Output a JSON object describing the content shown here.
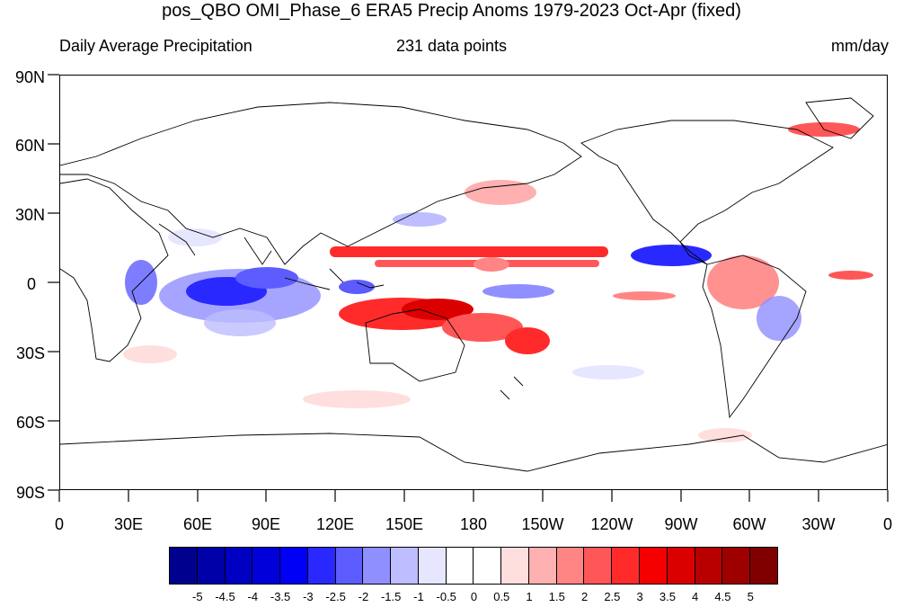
{
  "title": "pos_QBO OMI_Phase_6 ERA5 Precip Anoms 1979-2023 Oct-Apr (fixed)",
  "subtitle_left": "Daily Average Precipitation",
  "subtitle_center": "231 data points",
  "subtitle_right": "mm/day",
  "y_labels": [
    "90N",
    "60N",
    "30N",
    "0",
    "30S",
    "60S",
    "90S"
  ],
  "x_labels": [
    "0",
    "30E",
    "60E",
    "90E",
    "120E",
    "150E",
    "180",
    "150W",
    "120W",
    "90W",
    "60W",
    "30W",
    "0"
  ],
  "colorbar": {
    "labels": [
      "-5",
      "-4.5",
      "-4",
      "-3.5",
      "-3",
      "-2.5",
      "-2",
      "-1.5",
      "-1",
      "-0.5",
      "0",
      "0.5",
      "1",
      "1.5",
      "2",
      "2.5",
      "3",
      "3.5",
      "4",
      "4.5",
      "5"
    ],
    "colors": [
      "#00008f",
      "#0000a8",
      "#0000c2",
      "#0000db",
      "#0000f5",
      "#2929ff",
      "#5c5cff",
      "#8f8fff",
      "#bdbdff",
      "#e6e6ff",
      "#ffffff",
      "#ffffff",
      "#ffdede",
      "#ffb0b0",
      "#ff8585",
      "#ff5757",
      "#ff2b2b",
      "#f50000",
      "#db0000",
      "#b80000",
      "#9e0000",
      "#800000"
    ]
  },
  "map": {
    "projection": "cylindrical equidistant",
    "lon_range": [
      0,
      360
    ],
    "lat_range": [
      -90,
      90
    ],
    "field": "precipitation anomaly",
    "units": "mm/day"
  }
}
